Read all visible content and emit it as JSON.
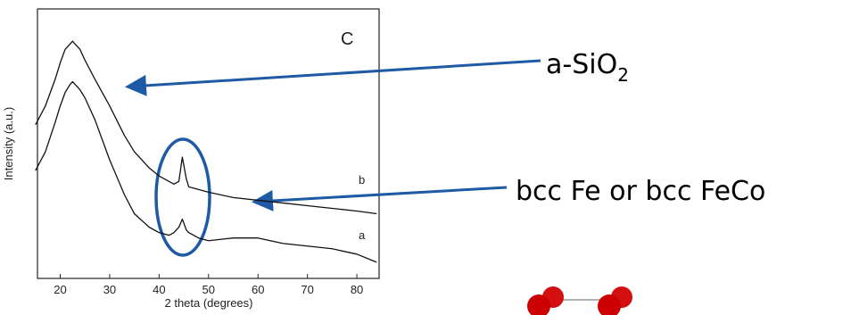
{
  "chart_data": {
    "type": "line",
    "ylabel": "Intensity (a.u.)",
    "xlabel": "2 theta (degrees)",
    "panel_label": "C",
    "x": [
      15,
      17,
      19,
      20,
      21,
      22,
      22.5,
      23,
      24,
      25,
      27,
      30,
      33,
      35,
      38,
      40,
      42,
      43,
      44,
      44.7,
      45.5,
      46,
      48,
      50,
      55,
      60,
      65,
      70,
      75,
      80,
      84
    ],
    "series": [
      {
        "name": "b",
        "color": "#111111",
        "values": [
          57,
          64,
          74,
          80,
          85,
          87,
          88,
          87,
          85,
          81,
          74,
          64,
          53,
          47,
          41,
          38,
          36,
          35,
          36,
          45,
          37,
          34,
          33,
          32,
          30,
          29,
          28,
          27,
          26,
          25,
          24
        ]
      },
      {
        "name": "a",
        "color": "#111111",
        "values": [
          40,
          47,
          58,
          64,
          69,
          72,
          73,
          72,
          70,
          67,
          59,
          44,
          31,
          24,
          19,
          17,
          16,
          17,
          19,
          22,
          18,
          17,
          15,
          14,
          15,
          15,
          13,
          12,
          11,
          9,
          6
        ]
      }
    ],
    "xlim": [
      15.4,
      84.5
    ],
    "ylim": [
      0,
      100
    ],
    "xticks": [
      20,
      30,
      40,
      50,
      60,
      70,
      80
    ],
    "annotations": [
      {
        "text": "a-SiO",
        "subscript": "2"
      },
      {
        "text": "bcc Fe or bcc FeCo"
      }
    ]
  }
}
